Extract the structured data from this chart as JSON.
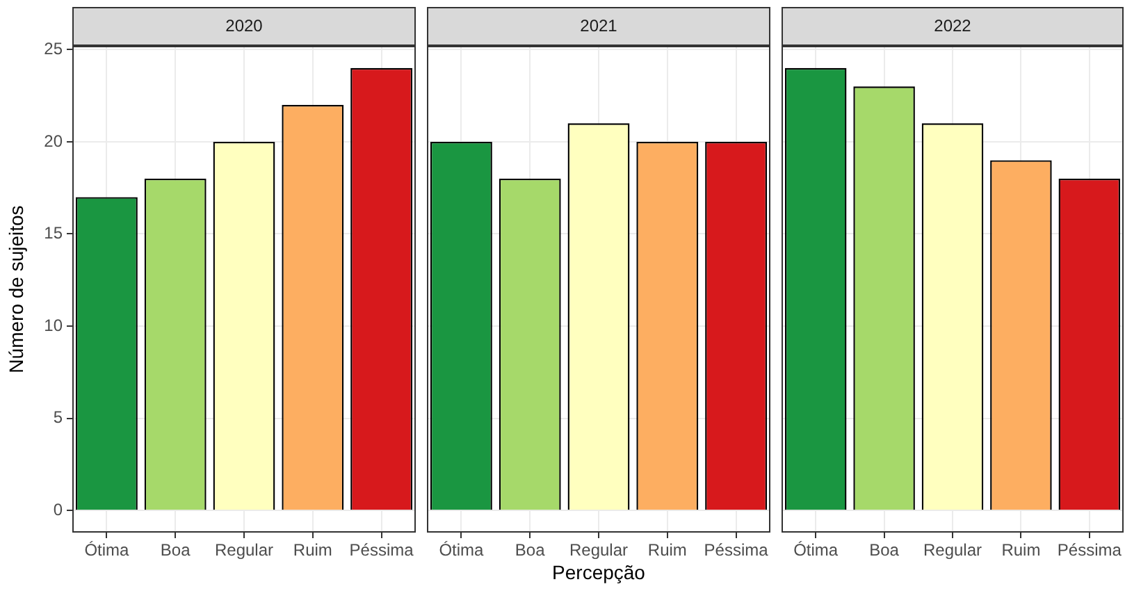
{
  "chart_data": [
    {
      "type": "bar",
      "title": "2020",
      "ylabel": "Número de sujeitos",
      "categories": [
        "Ótima",
        "Boa",
        "Regular",
        "Ruim",
        "Péssima"
      ],
      "values": [
        17,
        18,
        20,
        22,
        24
      ],
      "colors": [
        "#1a9641",
        "#a6d96a",
        "#ffffbf",
        "#fdae61",
        "#d7191c"
      ],
      "ylim": [
        -1.2,
        25.2
      ],
      "yticks": [
        0,
        5,
        10,
        15,
        20,
        25
      ],
      "grid": true,
      "legend": false
    },
    {
      "type": "bar",
      "title": "2021",
      "xlabel": "Percepção",
      "categories": [
        "Ótima",
        "Boa",
        "Regular",
        "Ruim",
        "Péssima"
      ],
      "values": [
        20,
        18,
        21,
        20,
        20
      ],
      "colors": [
        "#1a9641",
        "#a6d96a",
        "#ffffbf",
        "#fdae61",
        "#d7191c"
      ],
      "ylim": [
        -1.2,
        25.2
      ],
      "yticks": [
        0,
        5,
        10,
        15,
        20,
        25
      ],
      "grid": true,
      "legend": false,
      "tick_labels": "x"
    },
    {
      "type": "bar",
      "title": "2022",
      "categories": [
        "Ótima",
        "Boa",
        "Regular",
        "Ruim",
        "Péssima"
      ],
      "values": [
        24,
        23,
        21,
        19,
        18
      ],
      "colors": [
        "#1a9641",
        "#a6d96a",
        "#ffffbf",
        "#fdae61",
        "#d7191c"
      ],
      "ylim": [
        -1.2,
        25.2
      ],
      "yticks": [
        0,
        5,
        10,
        15,
        20,
        25
      ],
      "grid": true,
      "legend": false,
      "tick_labels": "x"
    }
  ]
}
